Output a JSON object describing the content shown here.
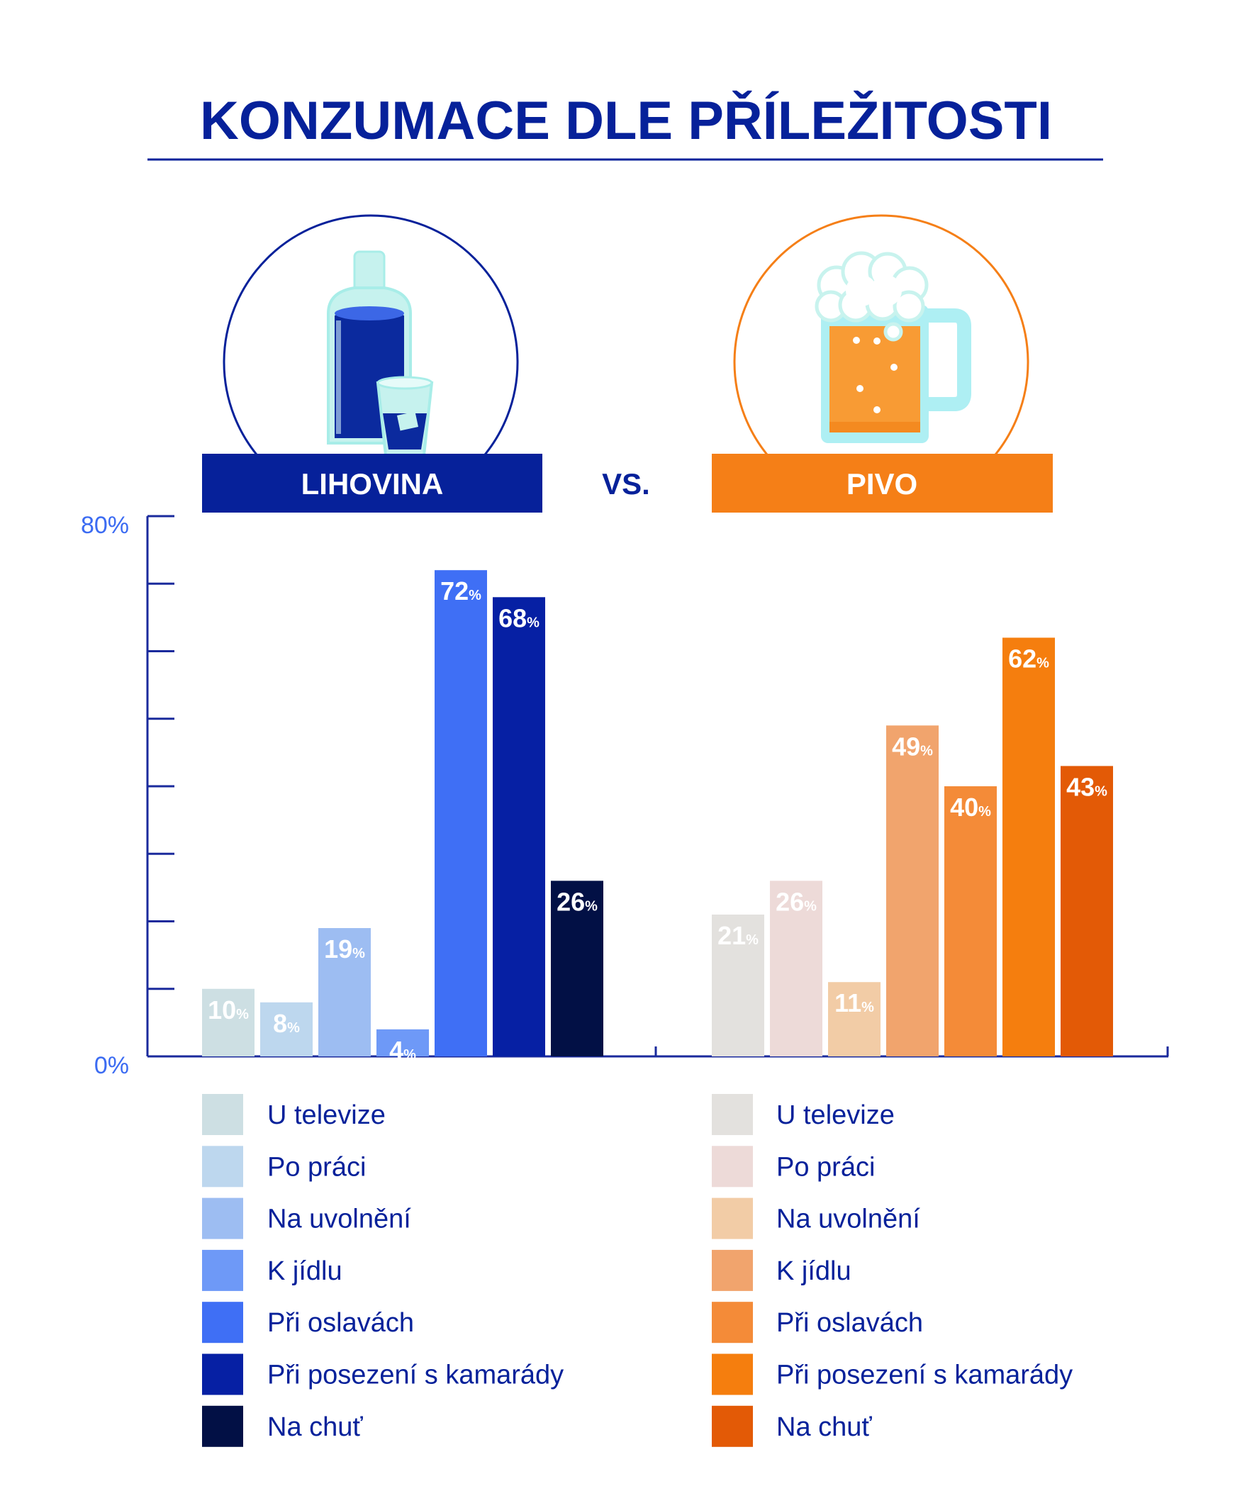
{
  "title": "KONZUMACE DLE PŘÍLEŽITOSTI",
  "vs_label": "VS.",
  "colors": {
    "navy": "#06219A",
    "axis": "#1A2A9C",
    "axis_label": "#3B6BF2",
    "beer_orange": "#F57F17",
    "legend_text": "#06219A"
  },
  "icons": {
    "left": "liquor-bottle-and-glass-icon",
    "right": "beer-mug-icon"
  },
  "chart_data": {
    "type": "bar",
    "ylim": [
      0,
      80
    ],
    "ytick_labels": [
      "0%",
      "80%"
    ],
    "value_suffix": "%",
    "categories": [
      "U televize",
      "Po práci",
      "Na uvolnění",
      "K jídlu",
      "Při oslavách",
      "Při posezení s kamarády",
      "Na chuť"
    ],
    "groups": [
      {
        "name": "LIHOVINA",
        "values": [
          10,
          8,
          19,
          4,
          72,
          68,
          26
        ],
        "colors": [
          "#CDDFE3",
          "#BDD7EE",
          "#9DBDF2",
          "#6E99F7",
          "#3F6FF5",
          "#0620A4",
          "#021045"
        ],
        "header_color": "#06219A"
      },
      {
        "name": "PIVO",
        "values": [
          21,
          26,
          11,
          49,
          40,
          62,
          43
        ],
        "colors": [
          "#E3E1DE",
          "#EDDAD8",
          "#F2CCA6",
          "#F1A46D",
          "#F48B38",
          "#F57E0E",
          "#E35A06"
        ],
        "header_color": "#F57F17"
      }
    ]
  }
}
